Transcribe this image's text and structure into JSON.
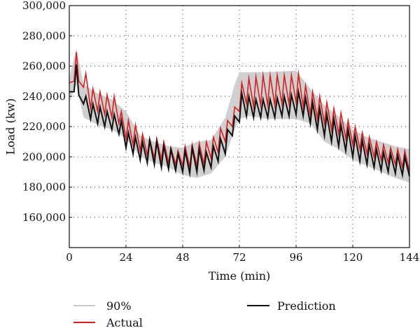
{
  "chart_data": {
    "type": "line",
    "xlabel": "Time (min)",
    "ylabel": "Load (kw)",
    "xlim": [
      0,
      144
    ],
    "ylim": [
      140000,
      300000
    ],
    "xticks": [
      0,
      24,
      48,
      72,
      96,
      120,
      144
    ],
    "xtick_labels": [
      "0",
      "24",
      "48",
      "72",
      "96",
      "120",
      "144"
    ],
    "yticks": [
      160000,
      180000,
      200000,
      220000,
      240000,
      260000,
      280000,
      300000
    ],
    "ytick_labels": [
      "160,000",
      "180,000",
      "200,000",
      "220,000",
      "240,000",
      "260,000",
      "280,000",
      "300,000"
    ],
    "grid": "dotted",
    "legend_position": "bottom",
    "band": {
      "name": "90%",
      "color": "#c8c8c8",
      "x": [
        0,
        3,
        6,
        12,
        18,
        24,
        30,
        36,
        42,
        48,
        54,
        60,
        66,
        70,
        72,
        76,
        84,
        96,
        102,
        108,
        114,
        120,
        126,
        132,
        138,
        144
      ],
      "lower": [
        236000,
        248000,
        226000,
        221000,
        218000,
        212000,
        200000,
        196000,
        193000,
        188000,
        186000,
        189000,
        200000,
        218000,
        225000,
        227000,
        225000,
        225000,
        222000,
        210000,
        205000,
        198000,
        194000,
        190000,
        186000,
        183000
      ],
      "upper": [
        252000,
        272000,
        248000,
        242000,
        238000,
        230000,
        214000,
        210000,
        207000,
        206000,
        210000,
        211000,
        226000,
        248000,
        256000,
        256000,
        256000,
        257000,
        245000,
        234000,
        227000,
        218000,
        213000,
        210000,
        207000,
        205000
      ]
    },
    "series": [
      {
        "name": "Actual",
        "color": "#d62020",
        "x": [
          0,
          2,
          3,
          4,
          6,
          7,
          9,
          10,
          12,
          13,
          15,
          16,
          18,
          19,
          21,
          22,
          24,
          25,
          27,
          28,
          30,
          31,
          33,
          34,
          36,
          37,
          39,
          40,
          42,
          43,
          45,
          46,
          48,
          49,
          51,
          52,
          54,
          55,
          57,
          58,
          60,
          61,
          63,
          64,
          66,
          67,
          69,
          70,
          72,
          73,
          75,
          76,
          78,
          79,
          81,
          82,
          84,
          85,
          87,
          88,
          90,
          91,
          93,
          94,
          96,
          97,
          99,
          100,
          102,
          103,
          105,
          106,
          108,
          109,
          111,
          112,
          114,
          115,
          117,
          118,
          120,
          121,
          123,
          124,
          126,
          127,
          129,
          130,
          132,
          133,
          135,
          136,
          138,
          139,
          141,
          142,
          144
        ],
        "values": [
          249000,
          250000,
          269000,
          250000,
          246000,
          255000,
          232000,
          245000,
          230000,
          243000,
          228000,
          241000,
          226000,
          240000,
          222000,
          230000,
          212000,
          224000,
          208000,
          221000,
          204000,
          215000,
          201000,
          212000,
          199000,
          212000,
          198000,
          210000,
          196000,
          206000,
          195000,
          204000,
          194000,
          207000,
          193000,
          208000,
          194000,
          209000,
          195000,
          210000,
          199000,
          213000,
          203000,
          219000,
          210000,
          224000,
          220000,
          233000,
          230000,
          249000,
          235000,
          252000,
          233000,
          253000,
          234000,
          254000,
          234000,
          254000,
          234000,
          254000,
          235000,
          254000,
          235000,
          254000,
          236000,
          255000,
          233000,
          247000,
          228000,
          243000,
          225000,
          240000,
          222000,
          236000,
          218000,
          232000,
          215000,
          229000,
          212000,
          224000,
          208000,
          220000,
          205000,
          216000,
          202000,
          213000,
          200000,
          210000,
          198000,
          208000,
          196000,
          206000,
          195000,
          205000,
          193000,
          204000,
          190000
        ]
      },
      {
        "name": "Prediction",
        "color": "#111111",
        "x": [
          0,
          2,
          3,
          4,
          6,
          7,
          9,
          10,
          12,
          13,
          15,
          16,
          18,
          19,
          21,
          22,
          24,
          25,
          27,
          28,
          30,
          31,
          33,
          34,
          36,
          37,
          39,
          40,
          42,
          43,
          45,
          46,
          48,
          49,
          51,
          52,
          54,
          55,
          57,
          58,
          60,
          61,
          63,
          64,
          66,
          67,
          69,
          70,
          72,
          73,
          75,
          76,
          78,
          79,
          81,
          82,
          84,
          85,
          87,
          88,
          90,
          91,
          93,
          94,
          96,
          97,
          99,
          100,
          102,
          103,
          105,
          106,
          108,
          109,
          111,
          112,
          114,
          115,
          117,
          118,
          120,
          121,
          123,
          124,
          126,
          127,
          129,
          130,
          132,
          133,
          135,
          136,
          138,
          139,
          141,
          142,
          144
        ],
        "values": [
          243000,
          243000,
          261000,
          241000,
          235000,
          240000,
          225000,
          235000,
          222000,
          233000,
          220000,
          230000,
          218000,
          228000,
          215000,
          224000,
          206000,
          216000,
          202000,
          213000,
          198000,
          210000,
          196000,
          211000,
          195000,
          210000,
          193000,
          207000,
          192000,
          205000,
          191000,
          202000,
          190000,
          204000,
          189000,
          206000,
          190000,
          205000,
          191000,
          203000,
          193000,
          207000,
          197000,
          212000,
          202000,
          218000,
          214000,
          227000,
          223000,
          242000,
          227000,
          240000,
          226000,
          238000,
          226000,
          238000,
          226000,
          238000,
          226000,
          239000,
          227000,
          240000,
          227000,
          241000,
          228000,
          243000,
          227000,
          239000,
          222000,
          236000,
          218000,
          232000,
          214000,
          228000,
          210000,
          225000,
          207000,
          221000,
          204000,
          218000,
          200000,
          214000,
          197000,
          211000,
          195000,
          208000,
          193000,
          205000,
          191000,
          203000,
          190000,
          202000,
          189000,
          201000,
          188000,
          200000,
          187000
        ]
      }
    ]
  }
}
